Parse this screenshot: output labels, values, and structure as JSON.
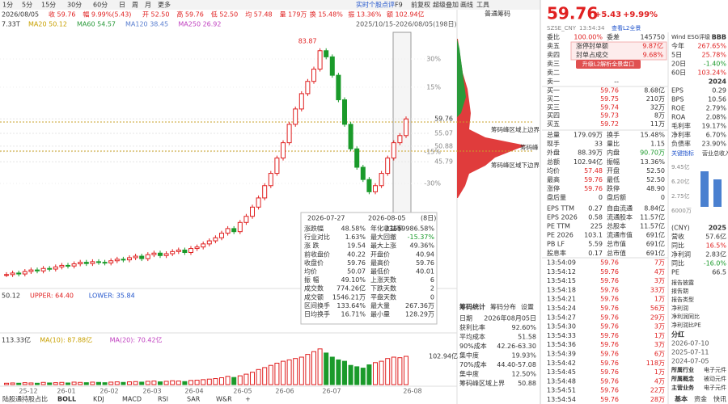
{
  "toolbar": {
    "periods": [
      "1分",
      "5分",
      "15分",
      "30分",
      "60分",
      "日",
      "周",
      "月",
      "更多"
    ],
    "chip_title": "普通筹码"
  },
  "info_bar": [
    "2026/08/05",
    "收 59.76",
    "幅 9.99%(5.43)",
    "开 52.50",
    "高 59.76",
    "低 52.50",
    "均 57.48",
    "量 179万",
    "换 15.48%",
    "振 13.36%",
    "额 102.94亿"
  ],
  "actions": [
    "实时个股点评",
    "F9",
    "前复权",
    "超级叠加",
    "画线",
    "工具"
  ],
  "ma_bar": [
    "7.33T",
    "MA20 50.12",
    "MA60 54.57",
    "MA120 38.45",
    "MA250 26.92"
  ],
  "range_label": "2025/10/15-2026/08/05(198日)",
  "kline": {
    "ylim": [
      5,
      88
    ],
    "closes": [
      9,
      9.5,
      9.2,
      10,
      10.5,
      10.2,
      11,
      10.8,
      11.5,
      12,
      11.8,
      12.5,
      13,
      12.6,
      13.2,
      13,
      12.8,
      13.5,
      14,
      13.8,
      14.5,
      15,
      14.2,
      15.5,
      16,
      15.2,
      15.8,
      16.5,
      17,
      16.2,
      17.5,
      18,
      19,
      20,
      21,
      22.5,
      24,
      23,
      26,
      28,
      31,
      34,
      38,
      42,
      47,
      52,
      58,
      63,
      68,
      72,
      76,
      82,
      80,
      74,
      66,
      58,
      50,
      44,
      40,
      36,
      38,
      42,
      47,
      52,
      54.33,
      59.76
    ],
    "peak_label": "83.87",
    "price_ticks": [
      59.76,
      55.07,
      50.88,
      45.79
    ],
    "pct_ticks": [
      {
        "value": 79.3,
        "label": "30%"
      },
      {
        "value": 70.1,
        "label": "15%"
      },
      {
        "value": 49.0,
        "label": "-15%"
      },
      {
        "value": 38.7,
        "label": "-30%"
      }
    ]
  },
  "chip": {
    "upper": "筹码峰区域上边界",
    "peak": "筹码峰",
    "lower": "筹码峰区域下边界"
  },
  "interval": {
    "start": "2026-07-27",
    "end": "2026-08-05",
    "days": "(8日)",
    "rows": [
      [
        "涨跌幅",
        "48.58%",
        "年化收益率",
        "23659986.58%"
      ],
      [
        "行业对比",
        "1.63%",
        "最大回撤",
        "-15.37%"
      ],
      [
        "涨 跌",
        "19.54",
        "最大上涨",
        "49.36%"
      ],
      [
        "前收盘价",
        "40.22",
        "开盘价",
        "40.94"
      ],
      [
        "收盘价",
        "59.76",
        "最高价",
        "59.76"
      ],
      [
        "均价",
        "50.07",
        "最低价",
        "40.01"
      ],
      [
        "振 幅",
        "49.10%",
        "上涨天数",
        "6"
      ],
      [
        "成交数",
        "774.26亿",
        "下跌天数",
        "2"
      ],
      [
        "成交额",
        "1546.21万",
        "平盘天数",
        "0"
      ],
      [
        "区间换手",
        "133.64%",
        "最大量",
        "267.36万"
      ],
      [
        "日均换手",
        "16.71%",
        "最小量",
        "128.29万"
      ]
    ]
  },
  "boll": [
    "50.12",
    "UPPER: 64.40",
    "LOWER: 35.84"
  ],
  "volume": {
    "ylim": [
      0,
      150
    ],
    "values": [
      5,
      6,
      5,
      7,
      6,
      5,
      8,
      6,
      7,
      8,
      6,
      9,
      8,
      7,
      9,
      8,
      7,
      9,
      10,
      8,
      10,
      11,
      9,
      12,
      13,
      10,
      12,
      14,
      13,
      11,
      15,
      16,
      18,
      20,
      22,
      25,
      30,
      26,
      32,
      38,
      45,
      55,
      62,
      70,
      78,
      85,
      90,
      95,
      100,
      110,
      120,
      130,
      115,
      100,
      90,
      85,
      70,
      65,
      60,
      72,
      80,
      85,
      95,
      100,
      98,
      102.94
    ],
    "legend": [
      "113.33亿",
      "MA(10): 87.88亿",
      "MA(20): 70.42亿"
    ],
    "last_label": "102.94亿"
  },
  "x_labels": [
    "25-12",
    "26-01",
    "26-02",
    "26-03",
    "26-04",
    "26-05",
    "26-06",
    "26-07",
    "26-08"
  ],
  "indicator_tabs": [
    "陆股通持股占比",
    "BOLL",
    "KDJ",
    "MACD",
    "RSI",
    "SAR",
    "W&R",
    "+"
  ],
  "chip_stats": {
    "tabs": [
      "筹码统计",
      "筹码分布",
      "设置"
    ],
    "rows": [
      [
        "日期",
        "2026年08月05日"
      ],
      [
        "获利比率",
        "92.60%"
      ],
      [
        "平均成本",
        "51.58"
      ],
      [
        "90%成本",
        "42.26-63.30"
      ],
      [
        "集中度",
        "19.93%"
      ],
      [
        "70%成本",
        "44.40-57.08"
      ],
      [
        "集中度",
        "12.50%"
      ],
      [
        "筹码峰区域上界",
        "50.88"
      ]
    ]
  },
  "quote": {
    "price": "59.76",
    "change": "+5.43",
    "pct": "+9.99%",
    "exchange": "SZSE_CNY",
    "time": "13:54:34",
    "l2": "查看L2全景"
  },
  "order_book": {
    "ratio": [
      "委比",
      "100.00%",
      "委差",
      "145750"
    ],
    "asks": [
      "卖五",
      "卖四",
      "卖三",
      "卖二",
      "卖一"
    ],
    "ask_notes": [
      [
        "涨停封单额",
        "9.87亿"
      ],
      [
        "封单占成交",
        "9.68%"
      ]
    ],
    "upgrade": "升级L2解析全景盘口",
    "ask_empty": "--",
    "bids": [
      [
        "买一",
        "59.76",
        "8.68亿"
      ],
      [
        "买二",
        "59.75",
        "210万"
      ],
      [
        "买三",
        "59.74",
        "32万"
      ],
      [
        "买四",
        "59.73",
        "8万"
      ],
      [
        "买五",
        "59.72",
        "11万"
      ]
    ]
  },
  "stats": [
    [
      "总量",
      "179.09万",
      "换手",
      "15.48%"
    ],
    [
      "现手",
      "33",
      "量比",
      "1.15"
    ],
    [
      "外盘",
      "88.39万",
      "内盘",
      "90.70万"
    ],
    [
      "总额",
      "102.94亿",
      "振幅",
      "13.36%"
    ],
    [
      "均价",
      "57.48",
      "开盘",
      "52.50"
    ],
    [
      "最高",
      "59.76",
      "最低",
      "52.50"
    ],
    [
      "涨停",
      "59.76",
      "跌停",
      "48.90"
    ],
    [
      "盘后量",
      "0",
      "盘后额",
      "0"
    ],
    [
      "EPS TTM",
      "0.27",
      "自由流通",
      "8.84亿"
    ],
    [
      "EPS 2026",
      "0.58",
      "流通股本",
      "11.57亿"
    ],
    [
      "PE TTM",
      "225",
      "总股本",
      "11.57亿"
    ],
    [
      "PE 2026",
      "103.1",
      "流通市值",
      "691亿"
    ],
    [
      "PB LF",
      "5.59",
      "总市值",
      "691亿"
    ],
    [
      "股息率",
      "0.17",
      "总市值",
      "691亿"
    ]
  ],
  "trades": [
    [
      "13:54:09",
      "59.76",
      "7万"
    ],
    [
      "13:54:12",
      "59.76",
      "4万"
    ],
    [
      "13:54:15",
      "59.76",
      "3万"
    ],
    [
      "13:54:18",
      "59.76",
      "33万"
    ],
    [
      "13:54:21",
      "59.76",
      "1万"
    ],
    [
      "13:54:24",
      "59.76",
      "56万"
    ],
    [
      "13:54:27",
      "59.76",
      "29万"
    ],
    [
      "13:54:30",
      "59.76",
      "3万"
    ],
    [
      "13:54:33",
      "59.76",
      "1万"
    ],
    [
      "13:54:36",
      "59.76",
      "3万"
    ],
    [
      "13:54:39",
      "59.76",
      "6万"
    ],
    [
      "13:54:42",
      "59.76",
      "118万"
    ],
    [
      "13:54:45",
      "59.76",
      "1万"
    ],
    [
      "13:54:48",
      "59.76",
      "4万"
    ],
    [
      "13:54:51",
      "59.76",
      "22万"
    ],
    [
      "13:54:54",
      "59.76",
      "28万"
    ]
  ],
  "profile": {
    "esg": [
      "Wind ESG评级",
      "BBB"
    ],
    "returns": [
      [
        "今年",
        "267.65%"
      ],
      [
        "5日",
        "25.78%"
      ],
      [
        "20日",
        "-1.40%"
      ],
      [
        "60日",
        "103.24%"
      ]
    ],
    "year": "2024",
    "metrics": [
      [
        "EPS",
        "0.29"
      ],
      [
        "BPS",
        "10.56"
      ],
      [
        "ROE",
        "2.79%"
      ],
      [
        "ROA",
        "2.08%"
      ],
      [
        "毛利率",
        "19.17%"
      ],
      [
        "净利率",
        "6.70%"
      ],
      [
        "负债率",
        "23.90%"
      ]
    ],
    "tabs": [
      "关键指标",
      "营业总收入"
    ],
    "chart_labels": [
      "9.45亿",
      "6.20亿",
      "2.75亿",
      "6000万"
    ],
    "fin_unit": "(CNY)",
    "fin_col": "2025",
    "fin": [
      [
        "营收",
        "57.6亿"
      ],
      [
        "同比",
        "16.5%"
      ],
      [
        "净利润",
        "2.83亿"
      ],
      [
        "同比",
        "-16.0%"
      ],
      [
        "PE",
        "66.5"
      ]
    ],
    "links": [
      "报告披露",
      "报告期",
      "报告类型",
      "净利润",
      "净利润同比",
      "净利润比PE"
    ],
    "dividend_title": "分红",
    "dividends": [
      "2026-07-10",
      "2025-07-11",
      "2024-07-05"
    ],
    "info": [
      [
        "所属行业",
        "电子元件"
      ],
      [
        "所属概念",
        "被动元件"
      ],
      [
        "主营业务",
        "电子元件"
      ]
    ],
    "bottom_tabs": [
      "基本",
      "资金",
      "快讯"
    ]
  }
}
